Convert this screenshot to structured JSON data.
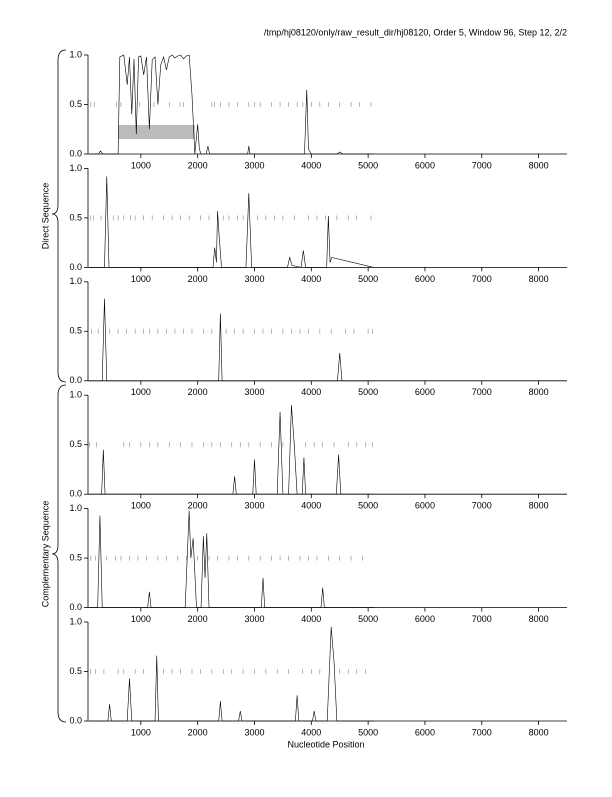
{
  "title": "/tmp/hj08120/only/raw_result_dir/hj08120, Order 5, Window 96, Step 12, 2/2",
  "direct_label": "Direct Sequence",
  "complementary_label": "Complementary Sequence",
  "x_label": "Nucleotide Position",
  "chart_data": [
    {
      "type": "line",
      "color": "#000000",
      "x": [
        100,
        250,
        290,
        330,
        600,
        630,
        700,
        760,
        800,
        840,
        880,
        920,
        960,
        1000,
        1050,
        1100,
        1150,
        1200,
        1250,
        1300,
        1350,
        1400,
        1450,
        1500,
        1550,
        1600,
        1650,
        1700,
        1750,
        1800,
        1850,
        1900,
        1950,
        2000,
        2030,
        2060,
        2150,
        2180,
        2210,
        2880,
        2900,
        2920,
        3880,
        3920,
        3950,
        3980,
        4000,
        4450,
        4500,
        4550,
        5100
      ],
      "values": [
        0,
        0,
        0.03,
        0,
        0,
        0.98,
        1.0,
        0.7,
        0.98,
        0.4,
        0.96,
        0.2,
        0.98,
        0.99,
        0.8,
        0.98,
        0.25,
        0.95,
        0.98,
        0.5,
        0.9,
        0.98,
        0.85,
        0.98,
        1.0,
        0.97,
        0.99,
        1.0,
        0.96,
        0.99,
        1.0,
        0.6,
        0.0,
        0.3,
        0.05,
        0,
        0,
        0.08,
        0,
        0,
        0.08,
        0,
        0,
        0.65,
        0.05,
        0.02,
        0,
        0,
        0.02,
        0,
        0
      ],
      "stops": [
        120,
        180,
        570,
        650,
        980,
        1230,
        1500,
        1690,
        1750,
        2250,
        2300,
        2400,
        2550,
        2700,
        2900,
        3000,
        3100,
        3300,
        3450,
        3600,
        3750,
        3850,
        4000,
        4150,
        4300,
        4500,
        4700,
        4850,
        5050
      ],
      "region": [
        600,
        1950
      ],
      "xlim": [
        70,
        8500
      ],
      "ylim": [
        0,
        1
      ],
      "xticks": [
        1000,
        2000,
        3000,
        4000,
        5000,
        6000,
        7000,
        8000
      ],
      "yticks": [
        {
          "value": 0,
          "label": "0.0"
        },
        {
          "value": 0.5,
          "label": "0.5"
        },
        {
          "value": 1,
          "label": "1.0"
        }
      ]
    },
    {
      "type": "line",
      "color": "#000000",
      "x": [
        100,
        360,
        400,
        440,
        2270,
        2300,
        2330,
        2350,
        2380,
        2420,
        2850,
        2900,
        2950,
        3580,
        3620,
        3660,
        3820,
        3860,
        3900,
        4270,
        4300,
        4330,
        4360,
        5100
      ],
      "values": [
        0,
        0,
        0.92,
        0,
        0,
        0.2,
        0.05,
        0.57,
        0.3,
        0,
        0,
        0.75,
        0,
        0,
        0.1,
        0.02,
        0,
        0.17,
        0,
        0,
        0.52,
        0.05,
        0.1,
        0
      ],
      "stops": [
        110,
        170,
        300,
        520,
        600,
        700,
        820,
        900,
        1050,
        1200,
        1400,
        1550,
        1700,
        1850,
        2050,
        2200,
        2450,
        2550,
        2700,
        2800,
        3050,
        3200,
        3350,
        3500,
        3700,
        3950,
        4100,
        4250,
        4450,
        4650,
        4800,
        5050
      ],
      "xlim": [
        70,
        8500
      ],
      "ylim": [
        0,
        1
      ],
      "xticks": [
        1000,
        2000,
        3000,
        4000,
        5000,
        6000,
        7000,
        8000
      ],
      "yticks": [
        {
          "value": 0,
          "label": "0.0"
        },
        {
          "value": 0.5,
          "label": "0.5"
        },
        {
          "value": 1,
          "label": "1.0"
        }
      ]
    },
    {
      "type": "line",
      "color": "#000000",
      "x": [
        100,
        320,
        360,
        400,
        2370,
        2400,
        2430,
        4460,
        4500,
        4540,
        5100
      ],
      "values": [
        0,
        0,
        0.83,
        0,
        0,
        0.68,
        0,
        0,
        0.28,
        0,
        0
      ],
      "stops": [
        130,
        250,
        450,
        600,
        750,
        900,
        1050,
        1150,
        1300,
        1450,
        1600,
        1750,
        1900,
        2100,
        2250,
        2500,
        2650,
        2800,
        3000,
        3150,
        3300,
        3500,
        3650,
        3800,
        3950,
        4150,
        4350,
        4600,
        4750,
        5000,
        5080
      ],
      "xlim": [
        70,
        8500
      ],
      "ylim": [
        0,
        1
      ],
      "xticks": [
        1000,
        2000,
        3000,
        4000,
        5000,
        6000,
        7000,
        8000
      ],
      "yticks": [
        {
          "value": 0,
          "label": "0.0"
        },
        {
          "value": 0.5,
          "label": "0.5"
        },
        {
          "value": 1,
          "label": "1.0"
        }
      ]
    },
    {
      "type": "line",
      "color": "#000000",
      "x": [
        100,
        310,
        340,
        370,
        2620,
        2650,
        2680,
        2970,
        3000,
        3030,
        3400,
        3450,
        3500,
        3600,
        3650,
        3700,
        3750,
        3840,
        3870,
        3900,
        4440,
        4480,
        4520,
        5100
      ],
      "values": [
        0,
        0,
        0.45,
        0,
        0,
        0.18,
        0,
        0,
        0.35,
        0,
        0,
        0.83,
        0,
        0,
        0.9,
        0.5,
        0,
        0,
        0.37,
        0,
        0,
        0.4,
        0,
        0
      ],
      "stops": [
        100,
        220,
        700,
        800,
        1000,
        1150,
        1300,
        1500,
        1700,
        1900,
        2100,
        2250,
        2400,
        2600,
        2750,
        2900,
        3100,
        3300,
        3500,
        3700,
        3900,
        4050,
        4200,
        4400,
        4650,
        4800,
        4950,
        5080
      ],
      "xlim": [
        70,
        8500
      ],
      "ylim": [
        0,
        1
      ],
      "xticks": [
        1000,
        2000,
        3000,
        4000,
        5000,
        6000,
        7000,
        8000
      ],
      "yticks": [
        {
          "value": 0,
          "label": "0.0"
        },
        {
          "value": 0.5,
          "label": "0.5"
        },
        {
          "value": 1,
          "label": "1.0"
        }
      ]
    },
    {
      "type": "line",
      "color": "#000000",
      "x": [
        100,
        240,
        280,
        320,
        1120,
        1150,
        1180,
        1780,
        1850,
        1880,
        1920,
        1980,
        2060,
        2100,
        2130,
        2160,
        2200,
        3120,
        3150,
        3180,
        4170,
        4200,
        4230,
        5100
      ],
      "values": [
        0,
        0,
        0.93,
        0,
        0,
        0.16,
        0,
        0,
        0.98,
        0.5,
        0.7,
        0,
        0,
        0.72,
        0.3,
        0.75,
        0,
        0,
        0.3,
        0,
        0,
        0.2,
        0,
        0
      ],
      "stops": [
        120,
        200,
        400,
        550,
        650,
        800,
        950,
        1100,
        1300,
        1450,
        1650,
        1800,
        2000,
        2200,
        2350,
        2550,
        2700,
        2900,
        3100,
        3300,
        3450,
        3600,
        3800,
        3950,
        4100,
        4300,
        4500,
        4700,
        4900
      ],
      "xlim": [
        70,
        8500
      ],
      "ylim": [
        0,
        1
      ],
      "xticks": [
        1000,
        2000,
        3000,
        4000,
        5000,
        6000,
        7000,
        8000
      ],
      "yticks": [
        {
          "value": 0,
          "label": "0.0"
        },
        {
          "value": 0.5,
          "label": "0.5"
        },
        {
          "value": 1,
          "label": "1.0"
        }
      ]
    },
    {
      "type": "line",
      "color": "#000000",
      "x": [
        100,
        420,
        450,
        480,
        760,
        800,
        840,
        1250,
        1280,
        1310,
        2370,
        2400,
        2430,
        2720,
        2750,
        2780,
        3720,
        3750,
        3780,
        4020,
        4050,
        4080,
        4280,
        4350,
        4400,
        4450,
        5100
      ],
      "values": [
        0,
        0,
        0.17,
        0,
        0,
        0.43,
        0,
        0,
        0.66,
        0,
        0,
        0.2,
        0,
        0,
        0.1,
        0,
        0,
        0.26,
        0,
        0,
        0.1,
        0,
        0,
        0.95,
        0.6,
        0,
        0
      ],
      "stops": [
        110,
        200,
        350,
        600,
        700,
        900,
        1050,
        1400,
        1550,
        1700,
        1900,
        2050,
        2250,
        2450,
        2600,
        2800,
        3000,
        3200,
        3400,
        3600,
        3850,
        4000,
        4150,
        4500,
        4650,
        4800,
        4950
      ],
      "xlim": [
        70,
        8500
      ],
      "ylim": [
        0,
        1
      ],
      "xticks": [
        1000,
        2000,
        3000,
        4000,
        5000,
        6000,
        7000,
        8000
      ],
      "yticks": [
        {
          "value": 0,
          "label": "0.0"
        },
        {
          "value": 0.5,
          "label": "0.5"
        },
        {
          "value": 1,
          "label": "1.0"
        }
      ]
    }
  ]
}
